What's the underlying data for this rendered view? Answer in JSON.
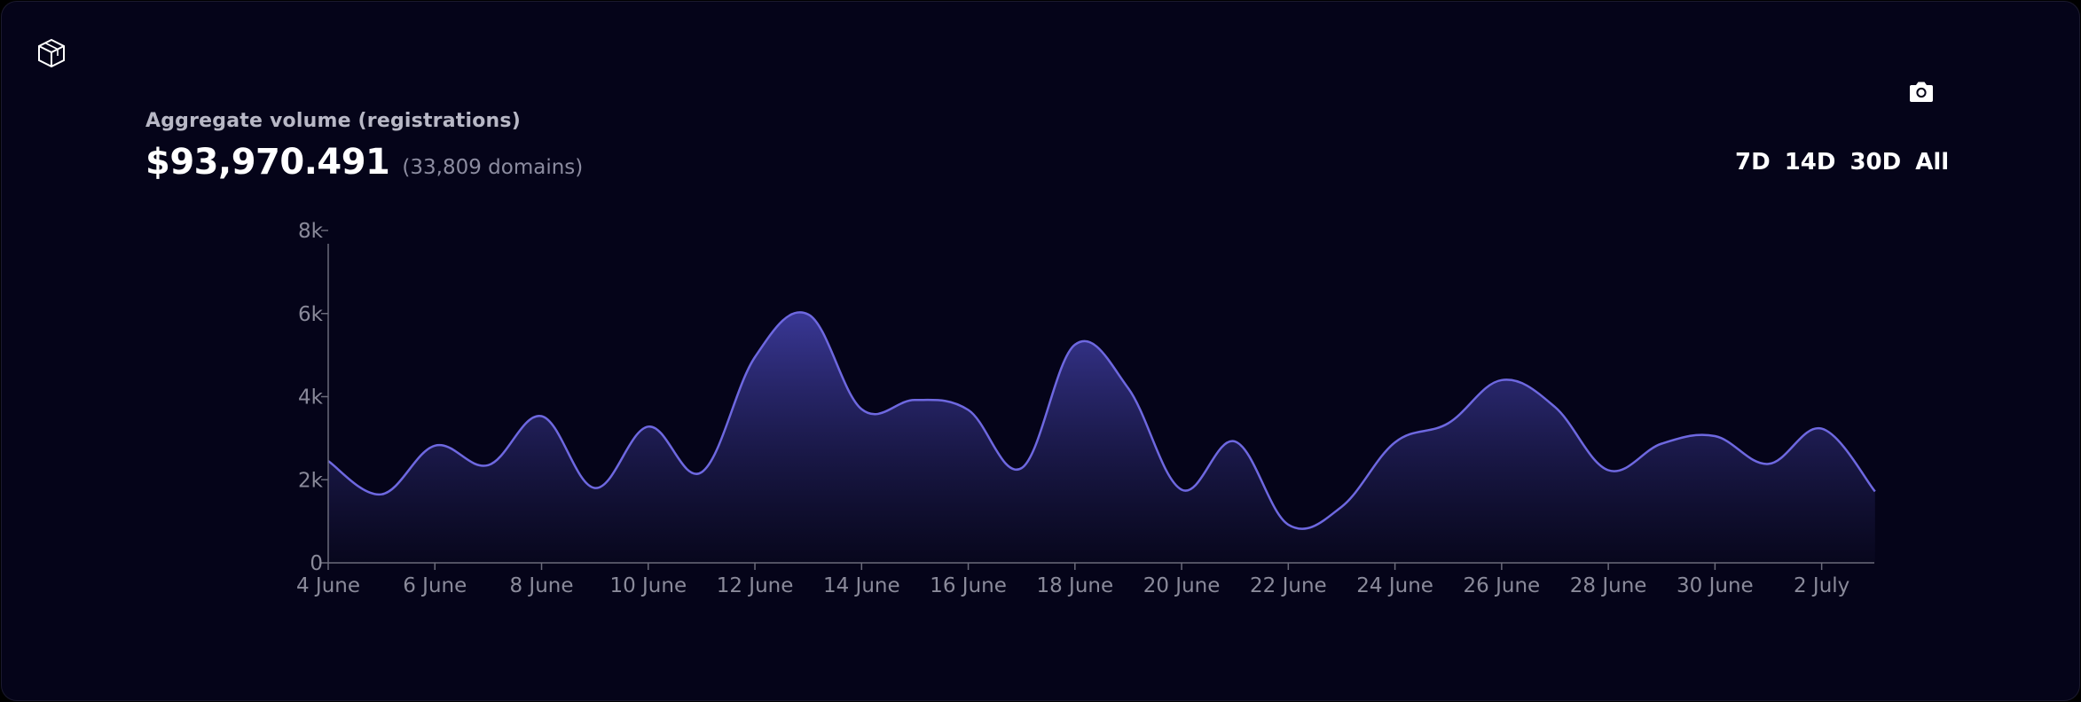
{
  "header": {
    "logo_icon": "cube-logo-icon",
    "subtitle": "Aggregate volume (registrations)",
    "total": "$93,970.491",
    "domains": "(33,809 domains)"
  },
  "toolbar": {
    "camera_icon": "camera-icon",
    "ranges": [
      "7D",
      "14D",
      "30D",
      "All"
    ]
  },
  "colors": {
    "background": "#050419",
    "line": "#6e68e0",
    "fill_top": "#3c3a9c",
    "axis": "#6b6b7b",
    "tick_text": "#8a8a9a"
  },
  "chart_data": {
    "type": "area",
    "title": "",
    "xlabel": "",
    "ylabel": "",
    "ylim": [
      0,
      8000
    ],
    "yticks": [
      0,
      2000,
      4000,
      6000,
      8000
    ],
    "ytick_labels": [
      "0",
      "2k",
      "4k",
      "6k",
      "8k"
    ],
    "xtick_labels": [
      "4 June",
      "6 June",
      "8 June",
      "10 June",
      "12 June",
      "14 June",
      "16 June",
      "18 June",
      "20 June",
      "22 June",
      "24 June",
      "26 June",
      "28 June",
      "30 June",
      "2 July"
    ],
    "x_range_days": [
      0,
      29
    ],
    "grid": false,
    "series": [
      {
        "x": [
          "4 June",
          "5 June",
          "6 June",
          "7 June",
          "8 June",
          "9 June",
          "10 June",
          "11 June",
          "12 June",
          "13 June",
          "14 June",
          "15 June",
          "16 June",
          "17 June",
          "18 June",
          "19 June",
          "20 June",
          "21 June",
          "22 June",
          "23 June",
          "24 June",
          "25 June",
          "26 June",
          "27 June",
          "28 June",
          "29 June",
          "30 June",
          "1 July",
          "2 July",
          "3 July"
        ],
        "values": [
          2450,
          1650,
          2820,
          2350,
          3530,
          1800,
          3280,
          2180,
          4950,
          5980,
          3700,
          3920,
          3680,
          2280,
          5250,
          4200,
          1760,
          2920,
          920,
          1350,
          2900,
          3360,
          4400,
          3750,
          2230,
          2870,
          3050,
          2380,
          3230,
          1720
        ]
      }
    ]
  }
}
